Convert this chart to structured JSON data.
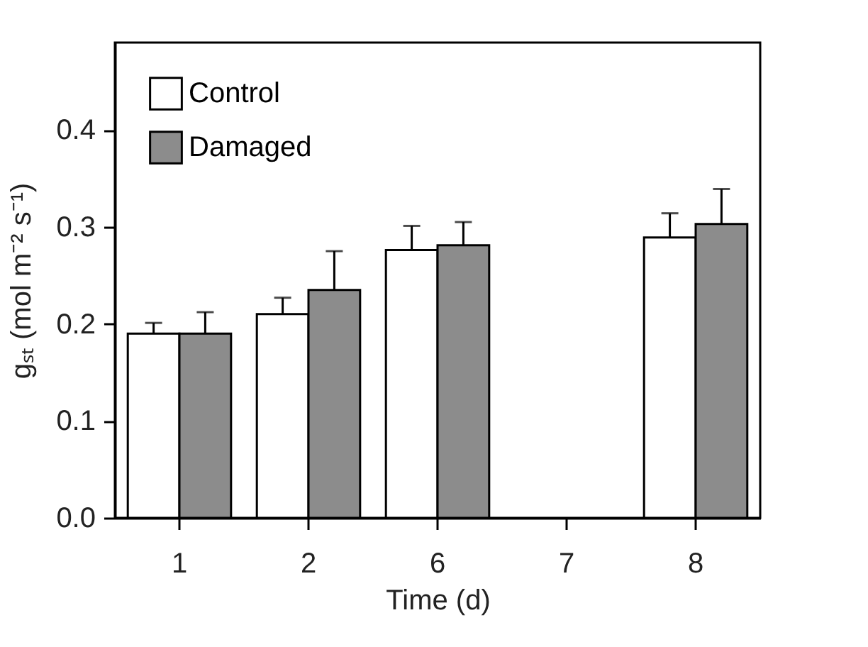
{
  "chart_data": {
    "type": "bar",
    "xlabel": "Time (d)",
    "ylabel": "gₛₜ (mol m⁻² s⁻¹)",
    "categories": [
      "1",
      "2",
      "6",
      "7",
      "8"
    ],
    "series": [
      {
        "name": "Control",
        "color": "#ffffff",
        "values": [
          0.19,
          0.21,
          0.276,
          null,
          0.289
        ],
        "errors": [
          [
            0.19,
            0.201
          ],
          [
            0.21,
            0.227
          ],
          [
            0.276,
            0.301
          ],
          null,
          [
            0.289,
            0.314
          ]
        ]
      },
      {
        "name": "Damaged",
        "color": "#8c8c8c",
        "values": [
          0.19,
          0.235,
          0.281,
          null,
          0.303
        ],
        "errors": [
          [
            0.19,
            0.212
          ],
          [
            0.235,
            0.275
          ],
          [
            0.281,
            0.305
          ],
          null,
          [
            0.303,
            0.339
          ]
        ]
      }
    ],
    "ylim": [
      0,
      0.49
    ],
    "yticks": [
      {
        "value": 0,
        "label": "0.0"
      },
      {
        "value": 0.1,
        "label": "0.1"
      },
      {
        "value": 0.2,
        "label": "0.2"
      },
      {
        "value": 0.3,
        "label": "0.3"
      },
      {
        "value": 0.4,
        "label": "0.4"
      }
    ],
    "grid": false,
    "legend": "top left"
  }
}
